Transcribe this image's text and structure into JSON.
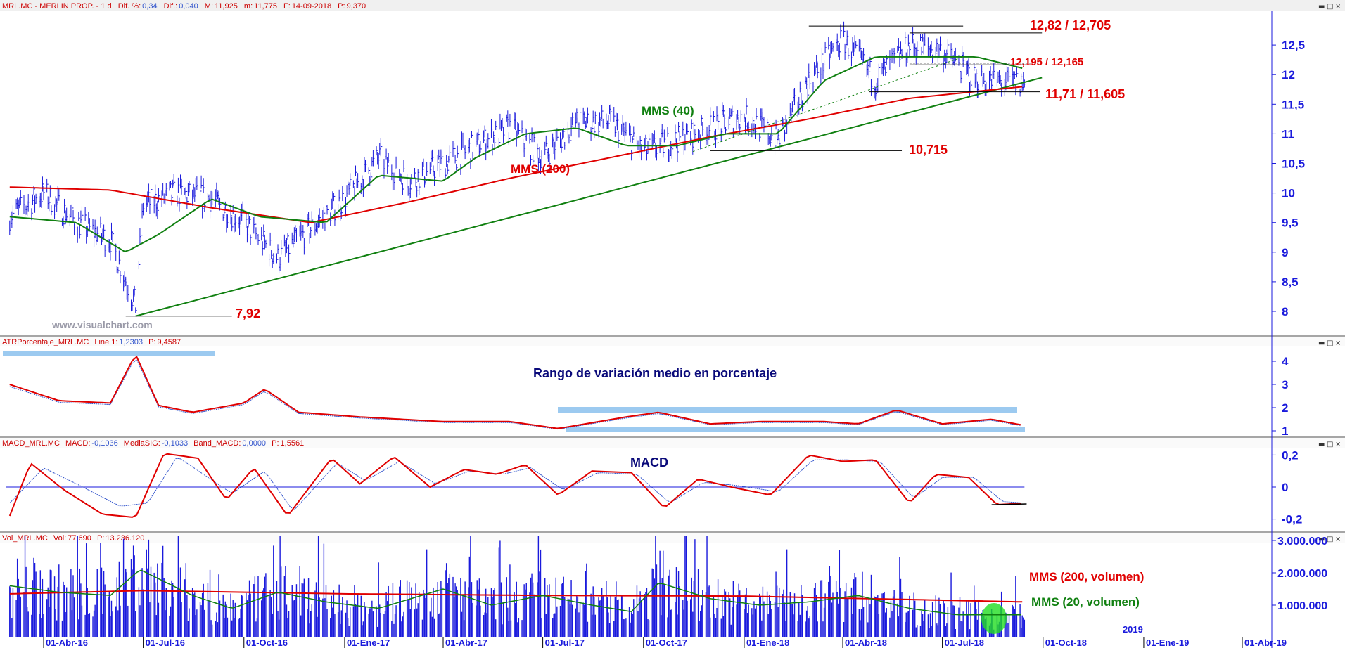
{
  "header": {
    "symbol": "MRL.MC - MERLIN PROP. - 1 d",
    "dif_pct_label": "Dif. %:",
    "dif_pct_value": "0,34",
    "dif_label": "Dif.:",
    "dif_value": "0,040",
    "high_label": "M:",
    "high_value": "11,925",
    "low_label": "m:",
    "low_value": "11,775",
    "date_label": "F:",
    "date_value": "14-09-2018",
    "price_label": "P:",
    "price_value": "9,370"
  },
  "watermark": "www.visualchart.com",
  "window_controls": {
    "minimize": "▬",
    "maximize": "□",
    "close": "×"
  },
  "annotations": {
    "level_high": "12,82 / 12,705",
    "level_mid": "12,195 / 12,165",
    "level_support": "11,71 / 11,605",
    "level_low_mid": "10,715",
    "level_min": "7,92",
    "mms40": "MMS (40)",
    "mms200": "MMS (200)",
    "atr_title": "Rango de variación medio en porcentaje",
    "macd_title": "MACD",
    "vol_mms200": "MMS (200, volumen)",
    "vol_mms20": "MMS (20, volumen)"
  },
  "panels": {
    "atr": {
      "header_name": "ATRPorcentaje_MRL.MC",
      "header_line": "Line 1:",
      "header_line_value": "1,2303",
      "header_p": "P:",
      "header_p_value": "9,4587"
    },
    "macd": {
      "header_name": "MACD_MRL.MC",
      "header_macd": "MACD:",
      "header_macd_value": "-0,1036",
      "header_sig": "MediaSIG:",
      "header_sig_value": "-0,1033",
      "header_band": "Band_MACD:",
      "header_band_value": "0,0000",
      "header_p": "P:",
      "header_p_value": "1,5561"
    },
    "volume": {
      "header_name": "Vol_MRL.MC",
      "header_vol": "Vol:",
      "header_vol_value": "77.690",
      "header_p": "P:",
      "header_p_value": "13.236.120"
    }
  },
  "colors": {
    "price_bars": "#1a1adc",
    "mms40": "#108010",
    "mms200": "#e00000",
    "trendline": "#108010",
    "atr_line": "#e00000",
    "atr_signal": "#3355cc",
    "macd_line": "#e00000",
    "macd_signal": "#3355cc",
    "zero_line": "#1a1adc",
    "highlight_band": "#9ccaf0",
    "volume_bars": "#1a1adc",
    "volume_mms20": "#108010",
    "volume_mms200": "#e00000",
    "volume_highlight": "#22dd22",
    "axis_text": "#1a1adc",
    "annotation_red": "#e00000",
    "annotation_green": "#108010"
  },
  "chart_data": [
    {
      "type": "line",
      "panel": "price",
      "title": "MRL.MC - MERLIN PROP. - 1 d",
      "x_tick_labels": [
        "01-Abr-16",
        "01-Jul-16",
        "01-Oct-16",
        "01-Ene-17",
        "01-Abr-17",
        "01-Jul-17",
        "01-Oct-17",
        "01-Ene-18",
        "01-Abr-18",
        "01-Jul-18",
        "01-Oct-18",
        "01-Ene-19",
        "01-Abr-19"
      ],
      "extra_axis_label": "2019",
      "y_ticks": [
        "8",
        "8,5",
        "9",
        "9,5",
        "10",
        "10,5",
        "11",
        "11,5",
        "12",
        "12,5"
      ],
      "ylim": [
        7.6,
        13.2
      ],
      "grid": false,
      "series": [
        {
          "name": "MRL.MC",
          "style": "ohlc-bars",
          "x": [
            "2016-03-01",
            "2016-04-01",
            "2016-05-01",
            "2016-06-01",
            "2016-06-24",
            "2016-07-01",
            "2016-08-01",
            "2016-09-01",
            "2016-10-01",
            "2016-11-01",
            "2016-12-01",
            "2017-01-01",
            "2017-02-01",
            "2017-03-01",
            "2017-04-01",
            "2017-05-01",
            "2017-06-01",
            "2017-07-01",
            "2017-08-01",
            "2017-09-01",
            "2017-10-01",
            "2017-11-01",
            "2017-12-01",
            "2018-01-01",
            "2018-02-01",
            "2018-03-01",
            "2018-04-01",
            "2018-05-01",
            "2018-06-01",
            "2018-07-01",
            "2018-08-01",
            "2018-09-14"
          ],
          "y": [
            9.6,
            10.0,
            9.5,
            9.2,
            8.1,
            9.8,
            10.0,
            9.9,
            9.5,
            8.9,
            9.4,
            9.9,
            10.6,
            10.2,
            10.5,
            10.8,
            11.1,
            10.6,
            11.2,
            11.2,
            10.7,
            10.9,
            11.1,
            11.3,
            10.9,
            11.9,
            12.6,
            11.9,
            12.5,
            12.4,
            11.9,
            11.85
          ]
        },
        {
          "name": "MMS (40)",
          "x": [
            "2016-03-01",
            "2016-05-01",
            "2016-06-15",
            "2016-07-15",
            "2016-09-01",
            "2016-10-15",
            "2016-12-15",
            "2017-02-01",
            "2017-04-01",
            "2017-05-01",
            "2017-06-15",
            "2017-08-01",
            "2017-09-15",
            "2017-11-01",
            "2017-12-15",
            "2018-02-01",
            "2018-03-15",
            "2018-05-01",
            "2018-06-15",
            "2018-08-01",
            "2018-09-14"
          ],
          "y": [
            9.6,
            9.5,
            9.0,
            9.3,
            9.9,
            9.6,
            9.5,
            10.3,
            10.2,
            10.6,
            11.0,
            11.1,
            10.8,
            10.8,
            11.0,
            11.0,
            11.9,
            12.3,
            12.3,
            12.3,
            12.1
          ]
        },
        {
          "name": "MMS (200)",
          "x": [
            "2016-03-01",
            "2016-06-01",
            "2016-09-01",
            "2016-12-01",
            "2017-03-01",
            "2017-06-01",
            "2017-09-01",
            "2017-12-01",
            "2018-03-01",
            "2018-06-01",
            "2018-09-14"
          ],
          "y": [
            10.1,
            10.05,
            9.75,
            9.5,
            9.85,
            10.25,
            10.6,
            10.95,
            11.25,
            11.6,
            11.8
          ]
        }
      ],
      "trendline": {
        "from": [
          "2016-06-24",
          7.92
        ],
        "to": [
          "2018-09-30",
          11.95
        ]
      },
      "levels": [
        12.82,
        12.705,
        12.195,
        12.165,
        11.71,
        11.605,
        10.715,
        7.92
      ]
    },
    {
      "type": "line",
      "panel": "atr",
      "title": "ATRPorcentaje_MRL.MC",
      "y_ticks": [
        "1",
        "2",
        "3",
        "4"
      ],
      "ylim": [
        0.8,
        4.6
      ],
      "series": [
        {
          "name": "Line 1",
          "x": [
            "2016-03-01",
            "2016-04-15",
            "2016-06-01",
            "2016-06-24",
            "2016-07-15",
            "2016-08-15",
            "2016-10-01",
            "2016-10-20",
            "2016-11-20",
            "2017-01-15",
            "2017-04-01",
            "2017-06-01",
            "2017-07-15",
            "2017-09-15",
            "2017-10-15",
            "2017-12-01",
            "2018-01-15",
            "2018-03-15",
            "2018-04-15",
            "2018-05-20",
            "2018-07-01",
            "2018-08-15",
            "2018-09-14"
          ],
          "y": [
            3.0,
            2.3,
            2.2,
            4.3,
            2.1,
            1.8,
            2.2,
            2.8,
            1.8,
            1.6,
            1.4,
            1.4,
            1.1,
            1.6,
            1.8,
            1.3,
            1.4,
            1.4,
            1.3,
            1.9,
            1.3,
            1.5,
            1.23
          ]
        }
      ]
    },
    {
      "type": "line",
      "panel": "macd",
      "title": "MACD_MRL.MC",
      "y_ticks": [
        "0,2",
        "0",
        "-0,2"
      ],
      "ylim": [
        -0.27,
        0.27
      ],
      "series": [
        {
          "name": "MACD",
          "x": [
            "2016-03-01",
            "2016-03-20",
            "2016-04-20",
            "2016-05-25",
            "2016-06-24",
            "2016-07-20",
            "2016-08-20",
            "2016-09-15",
            "2016-10-10",
            "2016-11-10",
            "2016-12-20",
            "2017-01-15",
            "2017-02-15",
            "2017-03-20",
            "2017-04-20",
            "2017-05-20",
            "2017-06-15",
            "2017-07-15",
            "2017-08-15",
            "2017-09-20",
            "2017-10-20",
            "2017-11-20",
            "2017-12-20",
            "2018-01-25",
            "2018-03-01",
            "2018-04-01",
            "2018-05-01",
            "2018-06-01",
            "2018-06-25",
            "2018-07-25",
            "2018-08-20",
            "2018-09-14"
          ],
          "y": [
            -0.18,
            0.15,
            -0.02,
            -0.17,
            -0.19,
            0.21,
            0.18,
            -0.08,
            0.12,
            -0.18,
            0.18,
            0.02,
            0.19,
            0.0,
            0.11,
            0.08,
            0.14,
            -0.05,
            0.1,
            0.09,
            -0.13,
            0.05,
            0.0,
            -0.05,
            0.2,
            0.16,
            0.17,
            -0.1,
            0.08,
            0.06,
            -0.11,
            -0.1
          ]
        },
        {
          "name": "MediaSIG",
          "x": [
            "2016-03-01",
            "2016-04-01",
            "2016-05-01",
            "2016-06-10",
            "2016-07-05",
            "2016-08-01",
            "2016-09-20",
            "2016-10-20",
            "2016-11-15",
            "2016-12-25",
            "2017-01-20",
            "2017-02-20",
            "2017-03-25",
            "2017-04-25",
            "2017-05-25",
            "2017-06-20",
            "2017-07-20",
            "2017-08-20",
            "2017-09-25",
            "2017-10-25",
            "2017-11-25",
            "2017-12-25",
            "2018-02-01",
            "2018-03-05",
            "2018-04-05",
            "2018-05-05",
            "2018-06-05",
            "2018-07-01",
            "2018-07-30",
            "2018-08-25",
            "2018-09-14"
          ],
          "y": [
            -0.1,
            0.12,
            0.02,
            -0.12,
            -0.1,
            0.19,
            -0.04,
            0.1,
            -0.15,
            0.15,
            0.04,
            0.16,
            0.02,
            0.1,
            0.08,
            0.12,
            -0.02,
            0.09,
            0.08,
            -0.1,
            0.03,
            0.01,
            -0.03,
            0.17,
            0.17,
            0.16,
            -0.07,
            0.06,
            0.06,
            -0.09,
            -0.1
          ]
        }
      ]
    },
    {
      "type": "bar",
      "panel": "volume",
      "title": "Vol_MRL.MC",
      "y_ticks": [
        "1.000.000",
        "2.000.000",
        "3.000.000"
      ],
      "ylim": [
        0,
        3200000
      ],
      "series": [
        {
          "name": "MMS (20, volumen)",
          "x": [
            "2016-03-01",
            "2016-04-15",
            "2016-06-01",
            "2016-06-28",
            "2016-08-15",
            "2016-09-20",
            "2016-11-01",
            "2016-12-15",
            "2017-02-01",
            "2017-04-01",
            "2017-05-15",
            "2017-07-01",
            "2017-08-15",
            "2017-09-20",
            "2017-10-15",
            "2017-12-01",
            "2018-01-15",
            "2018-03-01",
            "2018-04-15",
            "2018-06-01",
            "2018-07-15",
            "2018-09-14"
          ],
          "y": [
            1600000,
            1400000,
            1300000,
            2100000,
            1300000,
            900000,
            1400000,
            1100000,
            900000,
            1500000,
            1000000,
            1300000,
            1000000,
            800000,
            1700000,
            1200000,
            1000000,
            1100000,
            1300000,
            900000,
            700000,
            700000
          ]
        },
        {
          "name": "MMS (200, volumen)",
          "x": [
            "2016-03-01",
            "2016-07-01",
            "2017-01-01",
            "2017-07-01",
            "2018-01-01",
            "2018-09-14"
          ],
          "y": [
            1350000,
            1450000,
            1350000,
            1300000,
            1280000,
            1100000
          ]
        }
      ]
    }
  ]
}
